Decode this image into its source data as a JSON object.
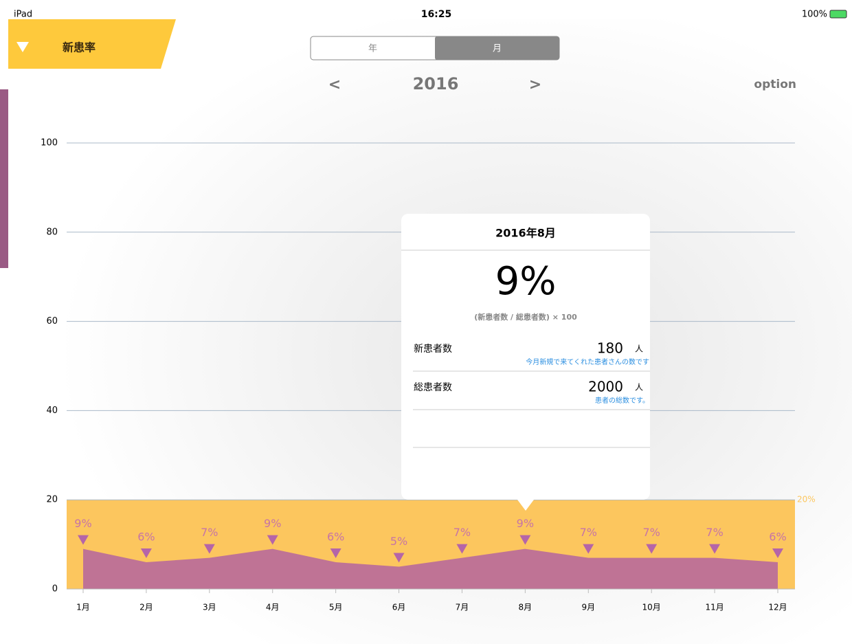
{
  "status_bar": {
    "device": "iPad",
    "time": "16:25",
    "battery": "100%"
  },
  "header": {
    "title": "新患率"
  },
  "segments": {
    "items": [
      "年",
      "月"
    ],
    "selected": 1
  },
  "nav": {
    "prev": "<",
    "year": "2016",
    "next": ">",
    "option": "option"
  },
  "chart_data": {
    "type": "area",
    "categories": [
      "1月",
      "2月",
      "3月",
      "4月",
      "5月",
      "6月",
      "7月",
      "8月",
      "9月",
      "10月",
      "11月",
      "12月"
    ],
    "values": [
      9,
      6,
      7,
      9,
      6,
      5,
      7,
      9,
      7,
      7,
      7,
      6
    ],
    "value_labels": [
      "9%",
      "6%",
      "7%",
      "9%",
      "6%",
      "5%",
      "7%",
      "9%",
      "7%",
      "7%",
      "7%",
      "6%"
    ],
    "color": "#bc6f98",
    "ylim": [
      0,
      100
    ],
    "yticks": [
      0,
      20,
      40,
      60,
      80,
      100
    ],
    "grid": true,
    "band": {
      "value": 20,
      "label": "20%",
      "color": "#fcc65e"
    }
  },
  "popup": {
    "title": "2016年8月",
    "value": "9%",
    "formula": "(新患者数 / 総患者数) × 100",
    "rows": [
      {
        "label": "新患者数",
        "value": "180",
        "unit": "人",
        "note": "今月新規で来てくれた患者さんの数です"
      },
      {
        "label": "総患者数",
        "value": "2000",
        "unit": "人",
        "note": "患者の総数です。"
      }
    ]
  }
}
